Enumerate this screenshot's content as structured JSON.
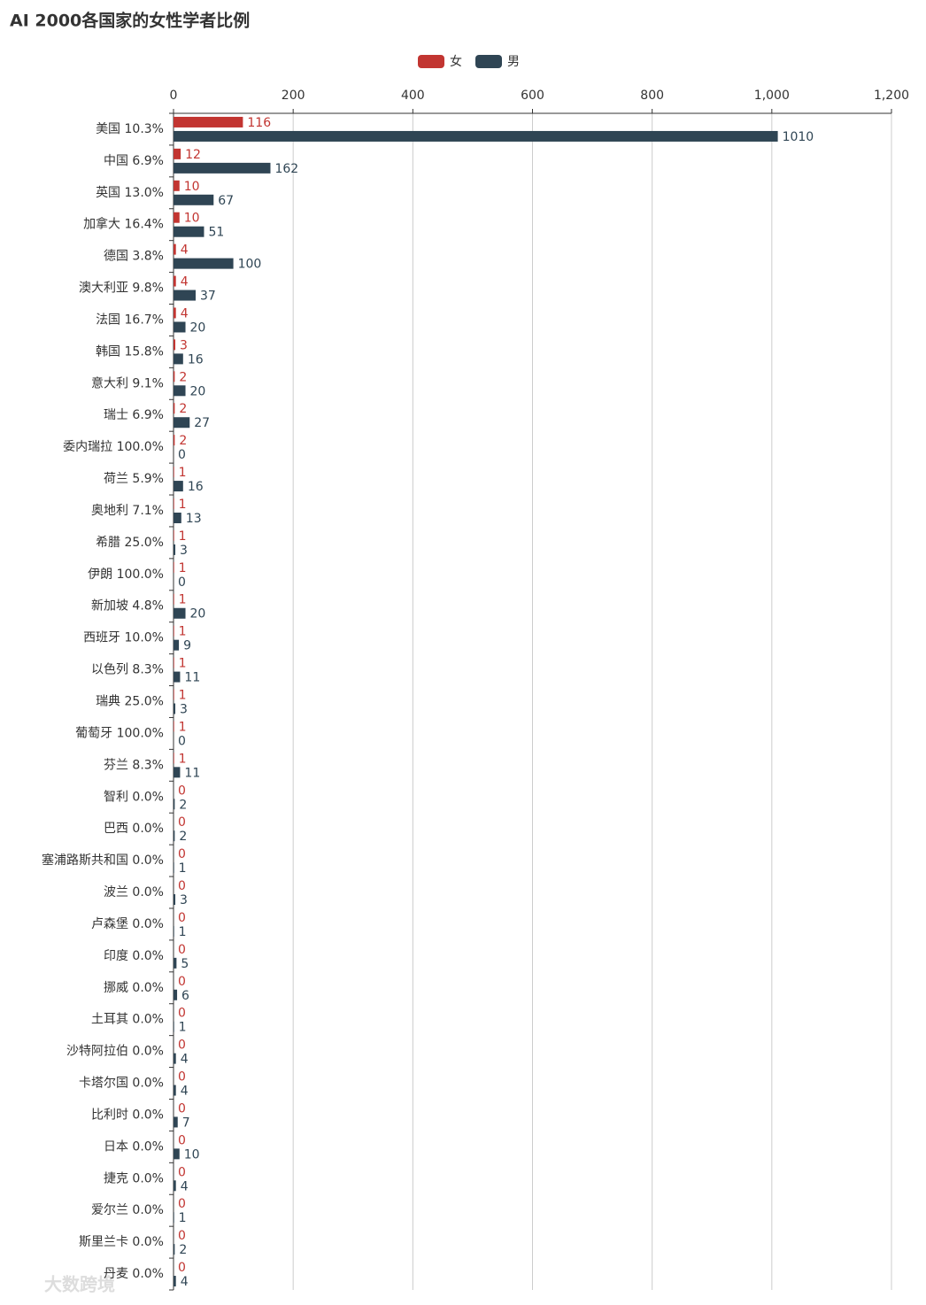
{
  "chart_data": {
    "type": "hbar",
    "title": "AI 2000各国家的女性学者比例",
    "categories": [
      "美国 10.3%",
      "中国 6.9%",
      "英国 13.0%",
      "加拿大 16.4%",
      "德国 3.8%",
      "澳大利亚 9.8%",
      "法国 16.7%",
      "韩国 15.8%",
      "意大利 9.1%",
      "瑞士 6.9%",
      "委内瑞拉 100.0%",
      "荷兰 5.9%",
      "奥地利 7.1%",
      "希腊 25.0%",
      "伊朗 100.0%",
      "新加坡 4.8%",
      "西班牙 10.0%",
      "以色列 8.3%",
      "瑞典 25.0%",
      "葡萄牙 100.0%",
      "芬兰 8.3%",
      "智利 0.0%",
      "巴西 0.0%",
      "塞浦路斯共和国 0.0%",
      "波兰 0.0%",
      "卢森堡 0.0%",
      "印度 0.0%",
      "挪威 0.0%",
      "土耳其 0.0%",
      "沙特阿拉伯 0.0%",
      "卡塔尔国 0.0%",
      "比利时 0.0%",
      "日本 0.0%",
      "捷克 0.0%",
      "爱尔兰 0.0%",
      "斯里兰卡 0.0%",
      "丹麦 0.0%"
    ],
    "series": [
      {
        "name": "女",
        "color": "#c23531",
        "values": [
          116,
          12,
          10,
          10,
          4,
          4,
          4,
          3,
          2,
          2,
          2,
          1,
          1,
          1,
          1,
          1,
          1,
          1,
          1,
          1,
          1,
          0,
          0,
          0,
          0,
          0,
          0,
          0,
          0,
          0,
          0,
          0,
          0,
          0,
          0,
          0,
          0
        ]
      },
      {
        "name": "男",
        "color": "#2f4554",
        "values": [
          1010,
          162,
          67,
          51,
          100,
          37,
          20,
          16,
          20,
          27,
          0,
          16,
          13,
          3,
          0,
          20,
          9,
          11,
          3,
          0,
          11,
          2,
          2,
          1,
          3,
          1,
          5,
          6,
          1,
          4,
          4,
          7,
          10,
          4,
          1,
          2,
          4
        ]
      }
    ],
    "xlim": [
      0,
      1200
    ],
    "xticks": [
      0,
      200,
      400,
      600,
      800,
      {
        "value": 1000,
        "label": "1,000"
      },
      {
        "value": 1200,
        "label": "1,200"
      }
    ],
    "grid": true,
    "watermark": "大数跨境"
  }
}
